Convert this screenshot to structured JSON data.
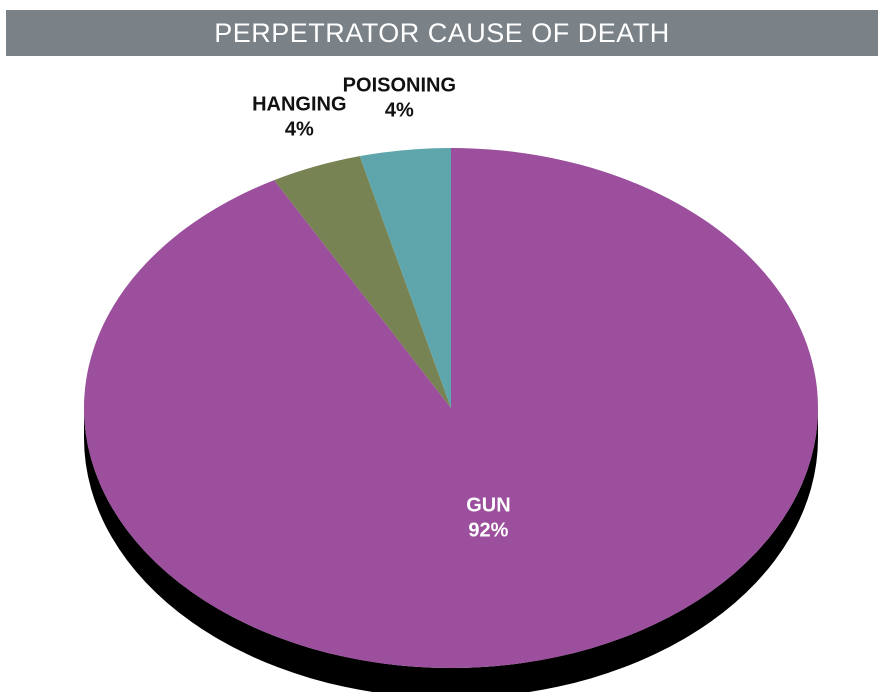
{
  "title": "PERPETRATOR CAUSE OF DEATH",
  "chart_data": {
    "type": "pie",
    "title": "PERPETRATOR CAUSE OF DEATH",
    "slices": [
      {
        "label": "GUN",
        "value": 92,
        "value_label": "92%",
        "color": "#9b4f9c",
        "label_position": "inside"
      },
      {
        "label": "HANGING",
        "value": 4,
        "value_label": "4%",
        "color": "#778352",
        "label_position": "outside"
      },
      {
        "label": "POISONING",
        "value": 4,
        "value_label": "4%",
        "color": "#5ea5ac",
        "label_position": "outside"
      }
    ],
    "start": "12 o'clock",
    "direction": "clockwise",
    "style": "3d-tilted",
    "shadow_color": "#000000"
  }
}
